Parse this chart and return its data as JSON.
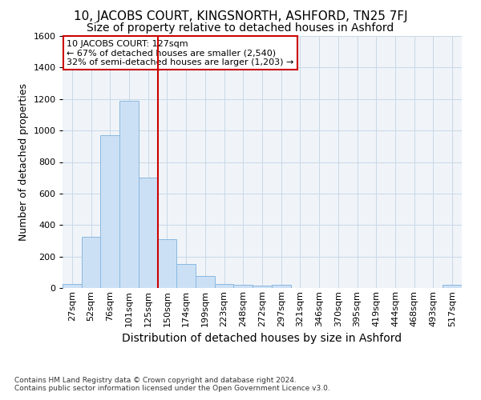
{
  "title1": "10, JACOBS COURT, KINGSNORTH, ASHFORD, TN25 7FJ",
  "title2": "Size of property relative to detached houses in Ashford",
  "xlabel": "Distribution of detached houses by size in Ashford",
  "ylabel": "Number of detached properties",
  "footnote": "Contains HM Land Registry data © Crown copyright and database right 2024.\nContains public sector information licensed under the Open Government Licence v3.0.",
  "bar_labels": [
    "27sqm",
    "52sqm",
    "76sqm",
    "101sqm",
    "125sqm",
    "150sqm",
    "174sqm",
    "199sqm",
    "223sqm",
    "248sqm",
    "272sqm",
    "297sqm",
    "321sqm",
    "346sqm",
    "370sqm",
    "395sqm",
    "419sqm",
    "444sqm",
    "468sqm",
    "493sqm",
    "517sqm"
  ],
  "bar_values": [
    25,
    325,
    970,
    1190,
    700,
    310,
    150,
    75,
    25,
    20,
    15,
    20,
    0,
    0,
    0,
    0,
    0,
    0,
    0,
    0,
    20
  ],
  "bar_color": "#cce0f5",
  "bar_edge_color": "#89b8e0",
  "grid_color": "#c8d8e8",
  "background_color": "#f0f4f8",
  "vline_color": "#cc0000",
  "vline_x_index": 4,
  "annotation_text": "10 JACOBS COURT: 127sqm\n← 67% of detached houses are smaller (2,540)\n32% of semi-detached houses are larger (1,203) →",
  "annotation_box_color": "#ffffff",
  "annotation_box_edge_color": "#cc0000",
  "ylim": [
    0,
    1600
  ],
  "yticks": [
    0,
    200,
    400,
    600,
    800,
    1000,
    1200,
    1400,
    1600
  ],
  "title1_fontsize": 11,
  "title2_fontsize": 10,
  "tick_fontsize": 8,
  "ylabel_fontsize": 9,
  "xlabel_fontsize": 10,
  "footnote_fontsize": 6.5,
  "annotation_fontsize": 8
}
